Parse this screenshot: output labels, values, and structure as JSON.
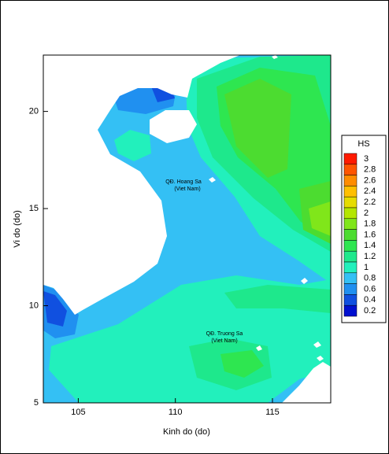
{
  "chart_data": {
    "type": "contour",
    "x_label": "Kinh do (do)",
    "y_label": "Vi do (do)",
    "xlim": [
      103.2,
      118
    ],
    "ylim": [
      5,
      22.9
    ],
    "xticks": [
      105,
      110,
      115
    ],
    "yticks": [
      5,
      10,
      15,
      20
    ],
    "legend_title": "HS",
    "levels": [
      3,
      2.8,
      2.6,
      2.4,
      2.2,
      2,
      1.8,
      1.6,
      1.4,
      1.2,
      1,
      0.8,
      0.6,
      0.4,
      0.2
    ],
    "colors": [
      "#ff1a00",
      "#ff5500",
      "#ff8c00",
      "#ffbf00",
      "#e6dc00",
      "#b4e600",
      "#80e61a",
      "#4cdc30",
      "#2ee650",
      "#1ee88c",
      "#22f0bc",
      "#34c0f4",
      "#2090f0",
      "#1050e0",
      "#0010d0"
    ],
    "annotations": [
      "QĐ. Hoang Sa",
      "(Viet Nam)",
      "QĐ. Truong Sa",
      "(Viet Nam)"
    ]
  }
}
